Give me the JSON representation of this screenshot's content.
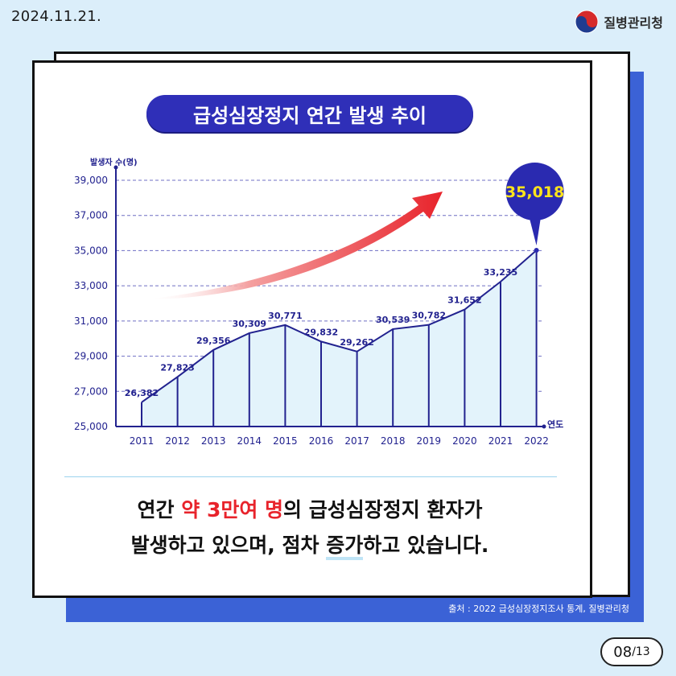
{
  "header": {
    "date": "2024.11.21.",
    "org_name": "질병관리청"
  },
  "chart_data": {
    "type": "area",
    "title": "급성심장정지 연간 발생 추이",
    "ylabel": "발생자 수(명)",
    "xlabel": "연도",
    "x": [
      "2011",
      "2012",
      "2013",
      "2014",
      "2015",
      "2016",
      "2017",
      "2018",
      "2019",
      "2020",
      "2021",
      "2022"
    ],
    "values": [
      26382,
      27823,
      29356,
      30309,
      30771,
      29832,
      29262,
      30539,
      30782,
      31652,
      33235,
      35018
    ],
    "data_labels": [
      "26,382",
      "27,823",
      "29,356",
      "30,309",
      "30,771",
      "29,832",
      "29,262",
      "30,539",
      "30,782",
      "31,652",
      "33,235",
      "35,018"
    ],
    "ylim": [
      25000,
      39000
    ],
    "yticks": [
      25000,
      27000,
      29000,
      31000,
      33000,
      35000,
      37000,
      39000
    ],
    "ytick_labels": [
      "25,000",
      "27,000",
      "29,000",
      "31,000",
      "33,000",
      "35,000",
      "37,000",
      "39,000"
    ],
    "grid": true,
    "line_color": "#22228f",
    "fill_color": "#e3f3fb",
    "highlight": {
      "label": "35,018",
      "color": "#2a2ab0",
      "text_color": "#ffe51a"
    },
    "trend_arrow_color": "#e8232b"
  },
  "caption": {
    "line1_pre": "연간 ",
    "line1_highlight": "약 3만여 명",
    "line1_post": "의 급성심장정지 환자가",
    "line2_pre": "발생하고 있으며, 점차 ",
    "line2_underline": "증가",
    "line2_post": "하고 있습니다."
  },
  "source": "출처 : 2022 급성심장정지조사 통계, 질병관리청",
  "page": {
    "current": "08",
    "total": "/13"
  }
}
